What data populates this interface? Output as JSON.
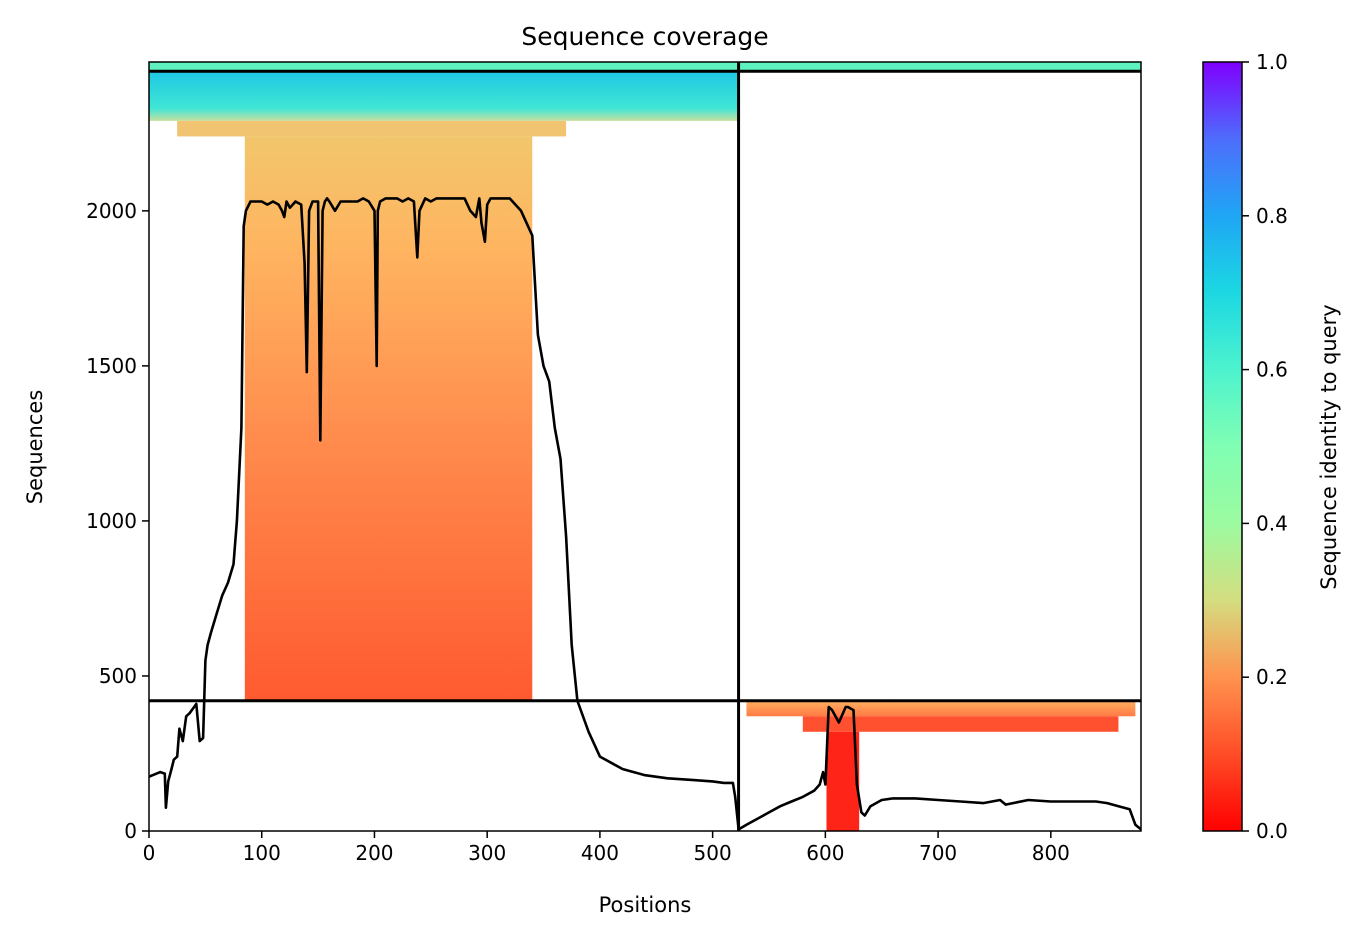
{
  "chart_data": {
    "type": "heatmap",
    "title": "Sequence coverage",
    "xlabel": "Positions",
    "ylabel": "Sequences",
    "xlim": [
      0,
      880
    ],
    "ylim": [
      0,
      2480
    ],
    "xticks": [
      0,
      100,
      200,
      300,
      400,
      500,
      600,
      700,
      800
    ],
    "yticks": [
      0,
      500,
      1000,
      1500,
      2000
    ],
    "colorbar": {
      "label": "Sequence identity to query",
      "range": [
        0.0,
        1.0
      ],
      "ticks": [
        "0.0",
        "0.2",
        "0.4",
        "0.6",
        "0.8",
        "1.0"
      ],
      "colormap": "rainbow_r"
    },
    "chain_boundary_x": 523,
    "paired_boundaries_y": [
      420,
      2450
    ],
    "coverage_segments": [
      {
        "region": "query_rows",
        "x": [
          0,
          880
        ],
        "y": [
          2450,
          2480
        ],
        "identity": 0.55
      },
      {
        "region": "chain1_high_identity",
        "x": [
          0,
          523
        ],
        "y": [
          2290,
          2450
        ],
        "identity": 0.65
      },
      {
        "region": "chain1_band",
        "x": [
          25,
          370
        ],
        "y": [
          2240,
          2290
        ],
        "identity": 0.3
      },
      {
        "region": "chain1_main",
        "x": [
          85,
          340
        ],
        "y": [
          420,
          2240
        ],
        "identity": 0.2
      },
      {
        "region": "chain2_top",
        "x": [
          530,
          875
        ],
        "y": [
          370,
          420
        ],
        "identity": 0.25
      },
      {
        "region": "chain2_mid",
        "x": [
          580,
          860
        ],
        "y": [
          320,
          370
        ],
        "identity": 0.16
      },
      {
        "region": "chain2_core",
        "x": [
          601,
          630
        ],
        "y": [
          0,
          320
        ],
        "identity": 0.05
      }
    ],
    "series": [
      {
        "name": "",
        "x": [
          0,
          10,
          14,
          15,
          17,
          20,
          22,
          25,
          27,
          30,
          33,
          36,
          40,
          42,
          45,
          48,
          50,
          52,
          55,
          60,
          65,
          70,
          75,
          78,
          82,
          84,
          86,
          90,
          95,
          100,
          105,
          110,
          115,
          118,
          120,
          122,
          125,
          130,
          135,
          138,
          140,
          142,
          145,
          148,
          150,
          152,
          154,
          156,
          158,
          160,
          165,
          170,
          175,
          180,
          185,
          190,
          195,
          200,
          202,
          203,
          205,
          210,
          215,
          220,
          225,
          230,
          235,
          238,
          240,
          245,
          250,
          255,
          260,
          270,
          280,
          285,
          290,
          293,
          295,
          298,
          300,
          303,
          306,
          310,
          315,
          320,
          330,
          340,
          345,
          350,
          355,
          360,
          365,
          370,
          375,
          380,
          390,
          400,
          410,
          420,
          430,
          440,
          460,
          480,
          500,
          510,
          518,
          520,
          523,
          530,
          540,
          550,
          560,
          570,
          580,
          590,
          595,
          598,
          600,
          603,
          606,
          612,
          618,
          620,
          625,
          628,
          632,
          635,
          640,
          650,
          660,
          680,
          700,
          720,
          740,
          755,
          760,
          780,
          800,
          820,
          840,
          850,
          860,
          870,
          875,
          880
        ],
        "y": [
          175,
          190,
          185,
          75,
          160,
          200,
          230,
          240,
          330,
          290,
          370,
          380,
          400,
          410,
          290,
          300,
          550,
          600,
          640,
          700,
          760,
          800,
          860,
          1000,
          1300,
          1950,
          2000,
          2030,
          2030,
          2030,
          2020,
          2030,
          2020,
          2000,
          1980,
          2030,
          2010,
          2030,
          2020,
          1830,
          1480,
          2000,
          2030,
          2030,
          2030,
          1260,
          2000,
          2030,
          2040,
          2030,
          2000,
          2030,
          2030,
          2030,
          2030,
          2040,
          2030,
          2000,
          1500,
          2000,
          2030,
          2040,
          2040,
          2040,
          2030,
          2040,
          2030,
          1850,
          2000,
          2040,
          2030,
          2040,
          2040,
          2040,
          2040,
          2000,
          1980,
          2040,
          1960,
          1900,
          2020,
          2040,
          2040,
          2040,
          2040,
          2040,
          2000,
          1920,
          1600,
          1500,
          1450,
          1300,
          1200,
          950,
          600,
          420,
          320,
          240,
          220,
          200,
          190,
          180,
          170,
          165,
          160,
          155,
          155,
          110,
          5,
          20,
          40,
          60,
          80,
          95,
          110,
          130,
          150,
          190,
          150,
          400,
          390,
          350,
          400,
          400,
          390,
          150,
          60,
          50,
          80,
          100,
          105,
          105,
          100,
          95,
          90,
          100,
          85,
          100,
          95,
          95,
          95,
          90,
          80,
          70,
          20,
          5
        ]
      }
    ]
  }
}
